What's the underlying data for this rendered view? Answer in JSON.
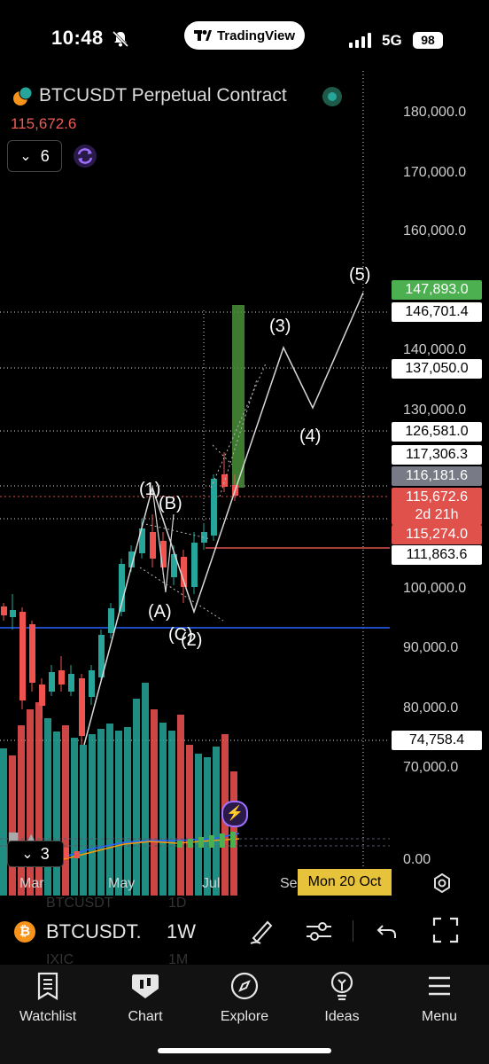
{
  "status": {
    "time": "10:48",
    "network": "5G",
    "battery": "98"
  },
  "app_pill": "TradingView",
  "chart": {
    "symbol_title": "BTCUSDT Perpetual Contract",
    "last_price": "115,672.6",
    "interval_value": "6",
    "y_axis_labels": [
      "180,000.0",
      "170,000.0",
      "160,000.0",
      "140,000.0",
      "130,000.0",
      "100,000.0",
      "90,000.0",
      "80,000.0",
      "70,000.0"
    ],
    "price_tags": [
      {
        "text": "147,893.0",
        "bg": "#4caf50",
        "fg": "#ffffff"
      },
      {
        "text": "146,701.4",
        "bg": "#ffffff",
        "fg": "#000000"
      },
      {
        "text": "137,050.0",
        "bg": "#ffffff",
        "fg": "#000000"
      },
      {
        "text": "126,581.0",
        "bg": "#ffffff",
        "fg": "#000000"
      },
      {
        "text": "117,306.3",
        "bg": "#ffffff",
        "fg": "#000000"
      },
      {
        "text": "116,181.6",
        "bg": "#787b86",
        "fg": "#ffffff"
      },
      {
        "text": "115,672.6",
        "bg": "#e0514c",
        "fg": "#ffffff"
      },
      {
        "text": "2d 21h",
        "bg": "#e0514c",
        "fg": "#ffffff"
      },
      {
        "text": "115,274.0",
        "bg": "#e0514c",
        "fg": "#ffffff"
      },
      {
        "text": "111,863.6",
        "bg": "#ffffff",
        "fg": "#000000"
      },
      {
        "text": "74,758.4",
        "bg": "#ffffff",
        "fg": "#000000"
      }
    ],
    "wave_labels": [
      "(1)",
      "(B)",
      "(A)",
      "(C)",
      "(2)",
      "(3)",
      "(4)",
      "(5)"
    ],
    "indicator_zero": "0.00",
    "indicator_collapse_count": "3",
    "x_axis_labels": [
      "Mar",
      "May",
      "Jul",
      "Sep"
    ],
    "crosshair_date": "Mon 20 Oct",
    "faded_watchlist": [
      "BTCUSDT",
      "1D",
      "IXIC",
      "1M"
    ]
  },
  "symbol_bar": {
    "symbol": "BTCUSDT.",
    "interval": "1W"
  },
  "tabs": [
    {
      "label": "Watchlist",
      "icon": "watchlist-icon"
    },
    {
      "label": "Chart",
      "icon": "chart-icon"
    },
    {
      "label": "Explore",
      "icon": "compass-icon"
    },
    {
      "label": "Ideas",
      "icon": "lightbulb-icon"
    },
    {
      "label": "Menu",
      "icon": "menu-icon"
    }
  ],
  "colors": {
    "up": "#26a69a",
    "down": "#ef5350",
    "accent": "#2962ff",
    "date_tag": "#e6c33a"
  }
}
